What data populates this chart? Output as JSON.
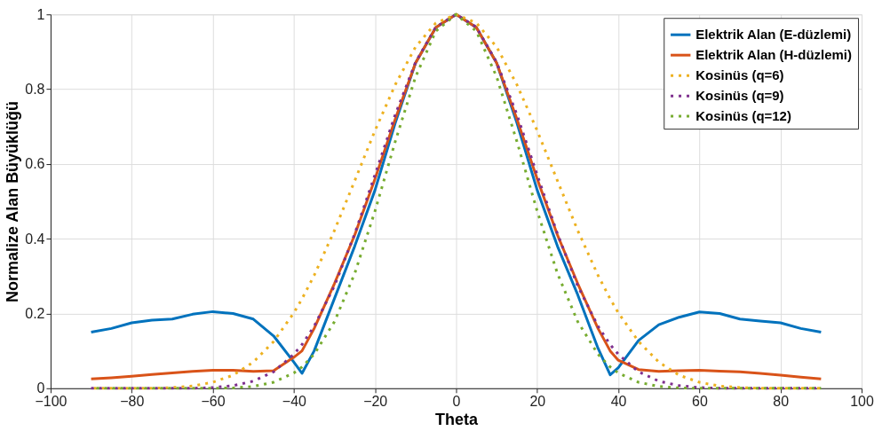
{
  "chart_data": {
    "type": "line",
    "xlabel": "Theta",
    "ylabel": "Normalize Alan Büyüklüğü",
    "x": [
      -90,
      -85,
      -80,
      -75,
      -70,
      -65,
      -60,
      -55,
      -50,
      -45,
      -40,
      -38,
      -35,
      -30,
      -25,
      -20,
      -15,
      -10,
      -5,
      0,
      5,
      10,
      15,
      20,
      25,
      30,
      35,
      38,
      40,
      45,
      50,
      55,
      60,
      65,
      70,
      75,
      80,
      85,
      90
    ],
    "series": [
      {
        "name": "Elektrik Alan (E-düzlemi)",
        "color": "#0072bd",
        "line_style": "solid",
        "values": [
          0.15,
          0.16,
          0.175,
          0.182,
          0.185,
          0.198,
          0.205,
          0.2,
          0.185,
          0.14,
          0.07,
          0.04,
          0.1,
          0.24,
          0.38,
          0.53,
          0.71,
          0.87,
          0.965,
          1,
          0.965,
          0.87,
          0.71,
          0.53,
          0.38,
          0.25,
          0.107,
          0.036,
          0.055,
          0.128,
          0.17,
          0.19,
          0.204,
          0.2,
          0.185,
          0.18,
          0.175,
          0.16,
          0.15
        ]
      },
      {
        "name": "Elektrik Alan (H-düzlemi)",
        "color": "#d95319",
        "line_style": "solid",
        "values": [
          0.025,
          0.028,
          0.032,
          0.037,
          0.041,
          0.045,
          0.048,
          0.048,
          0.045,
          0.047,
          0.083,
          0.1,
          0.16,
          0.28,
          0.41,
          0.56,
          0.72,
          0.87,
          0.965,
          1,
          0.965,
          0.87,
          0.72,
          0.56,
          0.41,
          0.28,
          0.16,
          0.1,
          0.075,
          0.05,
          0.045,
          0.047,
          0.048,
          0.046,
          0.044,
          0.04,
          0.035,
          0.03,
          0.025
        ]
      },
      {
        "name": "Kosinüs (q=6)",
        "color": "#edb120",
        "line_style": "dotted",
        "values": [
          0,
          0,
          0,
          0,
          0.002,
          0.006,
          0.016,
          0.035,
          0.07,
          0.125,
          0.202,
          0.239,
          0.302,
          0.422,
          0.555,
          0.689,
          0.812,
          0.913,
          0.977,
          1,
          0.977,
          0.913,
          0.812,
          0.689,
          0.555,
          0.422,
          0.302,
          0.239,
          0.202,
          0.125,
          0.07,
          0.035,
          0.016,
          0.006,
          0.002,
          0,
          0,
          0,
          0
        ]
      },
      {
        "name": "Kosinüs (q=9)",
        "color": "#7e2f8e",
        "line_style": "dotted",
        "values": [
          0,
          0,
          0,
          0,
          0,
          0,
          0.002,
          0.007,
          0.019,
          0.044,
          0.091,
          0.117,
          0.166,
          0.274,
          0.413,
          0.571,
          0.732,
          0.872,
          0.966,
          1,
          0.966,
          0.872,
          0.732,
          0.571,
          0.413,
          0.274,
          0.166,
          0.117,
          0.091,
          0.044,
          0.019,
          0.007,
          0.002,
          0,
          0,
          0,
          0,
          0,
          0
        ]
      },
      {
        "name": "Kosinüs (q=12)",
        "color": "#77ac30",
        "line_style": "dotted",
        "values": [
          0,
          0,
          0,
          0,
          0,
          0,
          0,
          0.001,
          0.005,
          0.016,
          0.041,
          0.057,
          0.091,
          0.178,
          0.307,
          0.474,
          0.66,
          0.833,
          0.955,
          1,
          0.955,
          0.833,
          0.66,
          0.474,
          0.307,
          0.178,
          0.091,
          0.057,
          0.041,
          0.016,
          0.005,
          0.001,
          0,
          0,
          0,
          0,
          0,
          0,
          0
        ]
      }
    ],
    "xlim": [
      -100,
      100
    ],
    "xticks": [
      -100,
      -80,
      -60,
      -40,
      -20,
      0,
      20,
      40,
      60,
      80,
      100
    ],
    "ylim": [
      0,
      1
    ],
    "yticks": [
      {
        "value": 0,
        "label": "0"
      },
      0.2,
      0.4,
      0.6,
      0.8,
      {
        "value": 1,
        "label": "1"
      }
    ],
    "grid": true,
    "legend": "top right",
    "marker": "none"
  }
}
